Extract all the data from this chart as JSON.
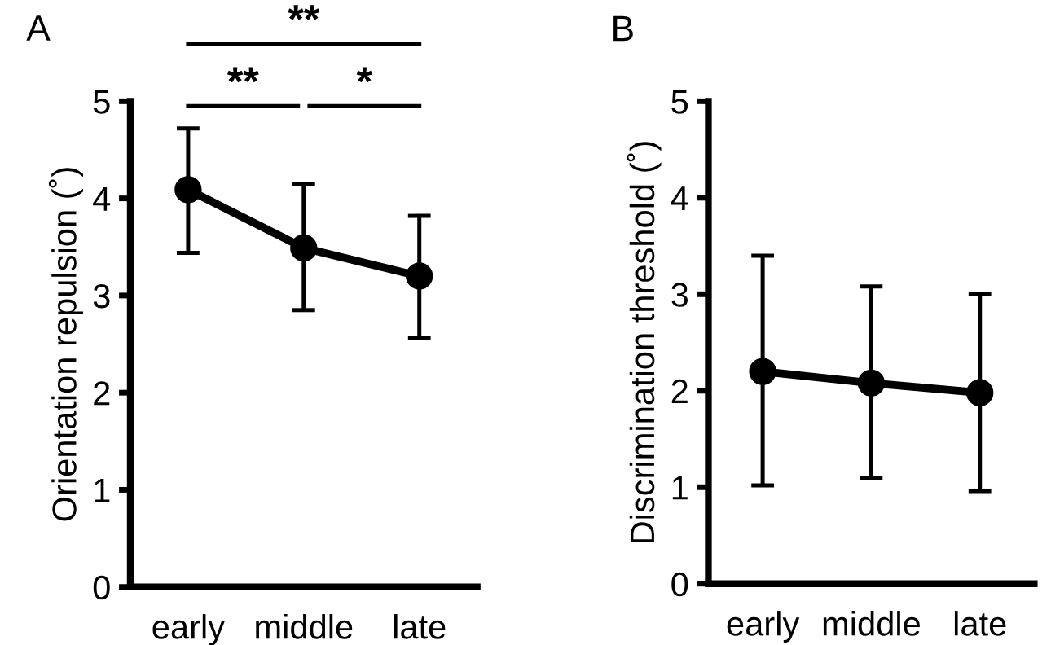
{
  "chart_data": [
    {
      "type": "line",
      "title": "A",
      "ylabel": "Orientation repulsion (˚)",
      "categories": [
        "early",
        "middle",
        "late"
      ],
      "series": [
        {
          "color": "#000000",
          "values": [
            4.09,
            3.49,
            3.2
          ],
          "errors": [
            [
              3.44,
              4.72
            ],
            [
              2.85,
              4.15
            ],
            [
              2.56,
              3.82
            ]
          ]
        }
      ],
      "ylim": [
        0,
        5
      ],
      "yticks": [
        0,
        1,
        2,
        3,
        4,
        5
      ],
      "marker": "circle",
      "line_style": "solid",
      "grid": false,
      "annotations": [
        "**",
        "**",
        "*"
      ]
    },
    {
      "type": "line",
      "title": "B",
      "ylabel": "Discrimination threshold (˚)",
      "categories": [
        "early",
        "middle",
        "late"
      ],
      "series": [
        {
          "color": "#000000",
          "values": [
            2.2,
            2.08,
            1.98
          ],
          "errors": [
            [
              1.02,
              3.4
            ],
            [
              1.09,
              3.08
            ],
            [
              0.96,
              3.0
            ]
          ]
        }
      ],
      "ylim": [
        0,
        5
      ],
      "yticks": [
        0,
        1,
        2,
        3,
        4,
        5
      ],
      "marker": "circle",
      "line_style": "solid",
      "grid": false
    }
  ]
}
